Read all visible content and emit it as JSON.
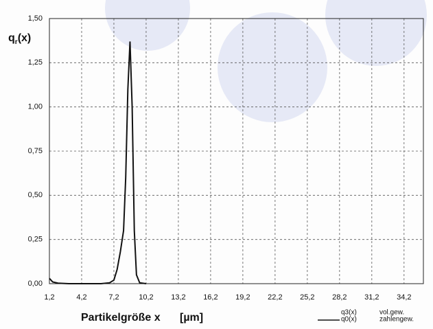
{
  "chart_data": {
    "type": "line",
    "ylabel": {
      "base": "q",
      "sub": "r",
      "rest": "(x)"
    },
    "xlabel": "Partikelgröße  x",
    "xunit": "[µm]",
    "xlim": [
      1.2,
      36
    ],
    "ylim": [
      0,
      1.5
    ],
    "xticks": [
      {
        "value": 1.2,
        "label": "1,2"
      },
      {
        "value": 4.2,
        "label": "4,2"
      },
      {
        "value": 7.2,
        "label": "7,2"
      },
      {
        "value": 10.2,
        "label": "10,2"
      },
      {
        "value": 13.2,
        "label": "13,2"
      },
      {
        "value": 16.2,
        "label": "16,2"
      },
      {
        "value": 19.2,
        "label": "19,2"
      },
      {
        "value": 22.2,
        "label": "22,2"
      },
      {
        "value": 25.2,
        "label": "25,2"
      },
      {
        "value": 28.2,
        "label": "28,2"
      },
      {
        "value": 31.2,
        "label": "31,2"
      },
      {
        "value": 34.2,
        "label": "34,2"
      }
    ],
    "yticks": [
      {
        "value": 0,
        "label": "0,00"
      },
      {
        "value": 0.25,
        "label": "0,25"
      },
      {
        "value": 0.5,
        "label": "0,50"
      },
      {
        "value": 0.75,
        "label": "0,75"
      },
      {
        "value": 1,
        "label": "1,00"
      },
      {
        "value": 1.25,
        "label": "1,25"
      },
      {
        "value": 1.5,
        "label": "1,50"
      }
    ],
    "grid": true,
    "legend_entries": [
      {
        "name": "q3(x)",
        "label": "vol.gew."
      }
    ],
    "series": [
      {
        "name": "q0(x)",
        "label": "zahlengew.",
        "color": "#111111",
        "x": [
          1.2,
          1.5,
          2,
          3,
          6,
          6.8,
          7.2,
          7.5,
          7.8,
          8.1,
          8.3,
          8.5,
          8.7,
          8.9,
          9.1,
          9.3,
          9.6,
          10.2
        ],
        "values": [
          0.03,
          0.01,
          0.003,
          0,
          0,
          0.005,
          0.02,
          0.08,
          0.18,
          0.3,
          0.6,
          1.1,
          1.37,
          1.0,
          0.3,
          0.05,
          0.005,
          0
        ]
      }
    ]
  }
}
